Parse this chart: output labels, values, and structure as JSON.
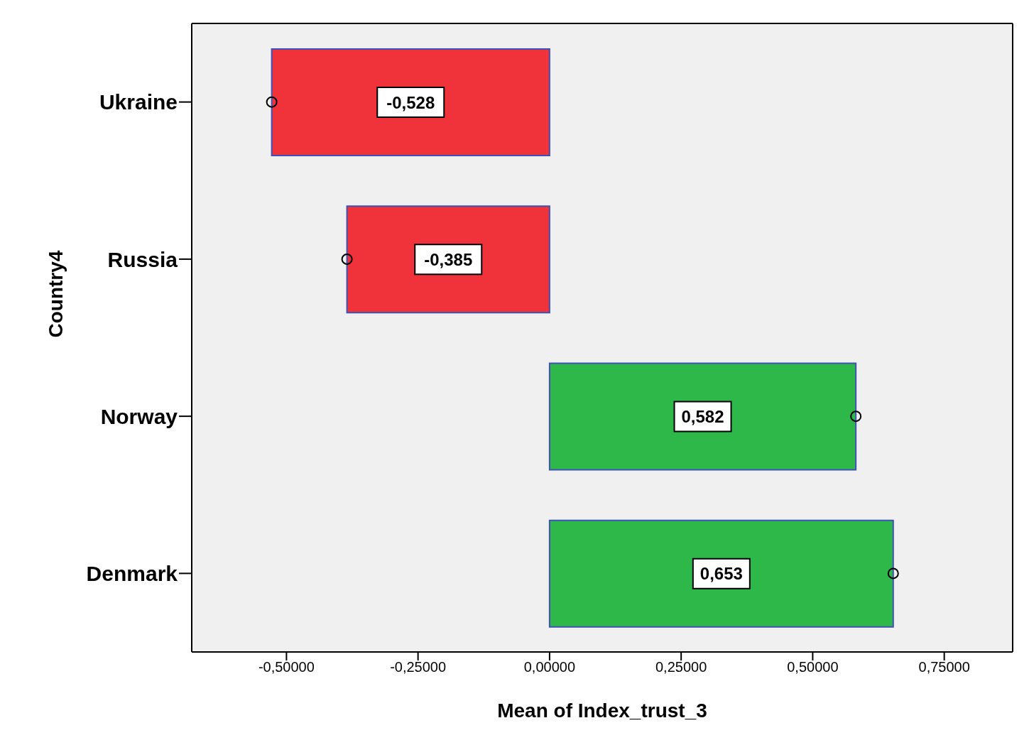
{
  "chart_data": {
    "type": "bar",
    "orientation": "horizontal",
    "xlabel": "Mean of Index_trust_3",
    "ylabel": "Country4",
    "categories": [
      "Ukraine",
      "Russia",
      "Norway",
      "Denmark"
    ],
    "series": [
      {
        "values": [
          -0.528,
          -0.385,
          0.582,
          0.653
        ],
        "colors": [
          "#f0323a",
          "#f0323a",
          "#2fb84a",
          "#2fb84a"
        ],
        "value_labels": [
          "-0,528",
          "-0,385",
          "0,582",
          "0,653"
        ]
      },
      {
        "type": "scatter",
        "values": [
          -0.528,
          -0.385,
          0.582,
          0.653
        ],
        "color": "#000000",
        "marker": "circle"
      }
    ],
    "xlim": [
      -0.68,
      0.88
    ],
    "xticks": [
      {
        "value": -0.5,
        "label": "-0,50000"
      },
      {
        "value": -0.25,
        "label": "-0,25000"
      },
      {
        "value": 0,
        "label": "0,00000"
      },
      {
        "value": 0.25,
        "label": "0,25000"
      },
      {
        "value": 0.5,
        "label": "0,50000"
      },
      {
        "value": 0.75,
        "label": "0,75000"
      }
    ],
    "grid": false,
    "legend": false
  }
}
